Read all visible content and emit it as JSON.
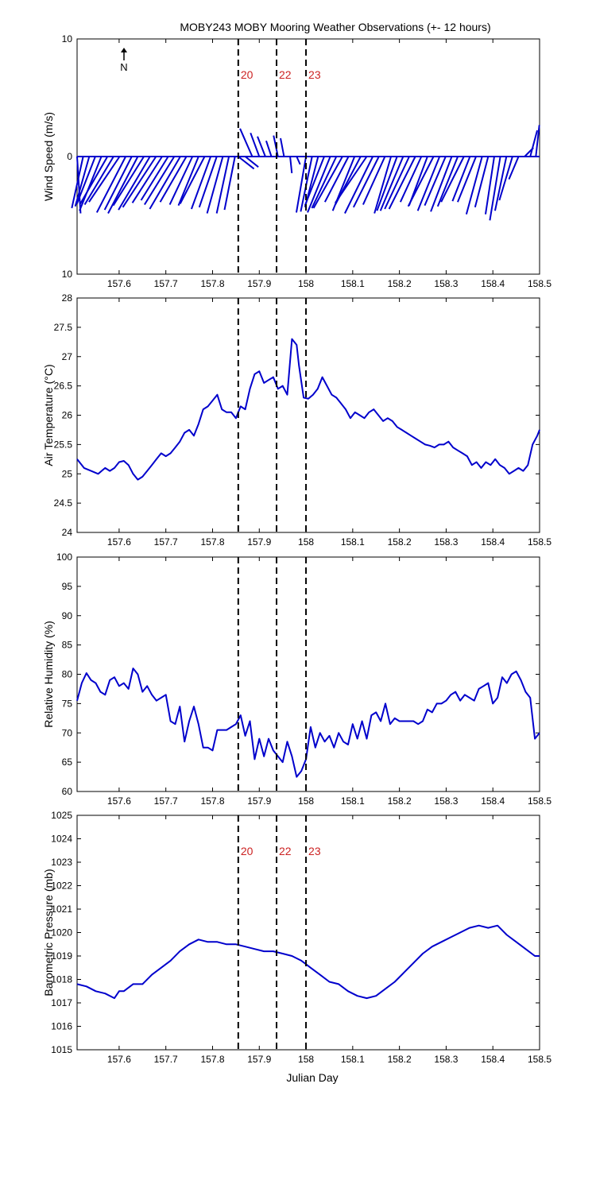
{
  "title": "MOBY243 MOBY Mooring Weather Observations (+- 12 hours)",
  "north_label": "N",
  "xlabel": "Julian Day",
  "colors": {
    "series": "#0000cc",
    "marker_label": "#cc2222",
    "axis": "#000000"
  },
  "x_range": [
    157.51,
    158.5
  ],
  "x_ticks": [
    157.6,
    157.7,
    157.8,
    157.9,
    158,
    158.1,
    158.2,
    158.3,
    158.4,
    158.5
  ],
  "x_tick_labels": [
    "157.6",
    "157.7",
    "157.8",
    "157.9",
    "158",
    "158.1",
    "158.2",
    "158.3",
    "158.4",
    "158.5"
  ],
  "markers": [
    {
      "x": 157.855,
      "label": "20"
    },
    {
      "x": 157.937,
      "label": "22"
    },
    {
      "x": 158.0,
      "label": "23"
    }
  ],
  "chart_data": [
    {
      "type": "line",
      "subtype": "wind-vectors",
      "ylabel": "Wind Speed (m/s)",
      "ylim": [
        -10,
        10
      ],
      "y_ticks": [
        10,
        0,
        -10
      ],
      "y_tick_labels": [
        "10",
        "0",
        "10"
      ],
      "show_marker_labels": true,
      "show_north": true,
      "series": [
        {
          "x": [
            157.51,
            157.523,
            157.536,
            157.549,
            157.562,
            157.575,
            157.588,
            157.601,
            157.614,
            157.627,
            157.64,
            157.653,
            157.666,
            157.679,
            157.692,
            157.705,
            157.718,
            157.731,
            157.744,
            157.757,
            157.77,
            157.783,
            157.796,
            157.809,
            157.822,
            157.835,
            157.848,
            157.855,
            157.87,
            157.885,
            157.9,
            157.913,
            157.926,
            157.94,
            157.953,
            157.966,
            157.98,
            158.0,
            158.013,
            158.026,
            158.039,
            158.052,
            158.065,
            158.078,
            158.091,
            158.104,
            158.117,
            158.13,
            158.143,
            158.156,
            158.169,
            158.182,
            158.195,
            158.208,
            158.221,
            158.234,
            158.247,
            158.26,
            158.273,
            158.286,
            158.299,
            158.312,
            158.325,
            158.338,
            158.351,
            158.364,
            158.377,
            158.39,
            158.403,
            158.416,
            158.429,
            158.442,
            158.455,
            158.468,
            158.48,
            158.492
          ],
          "u": [
            0.4,
            -1.3,
            -1.6,
            -2.1,
            -2.5,
            -3.1,
            -3.3,
            -3.5,
            -3.3,
            -3.1,
            -3.4,
            -3.5,
            -3.6,
            -3.8,
            -3.4,
            -3.1,
            -3.4,
            -3.5,
            -3.0,
            -2.6,
            -2.3,
            -2.8,
            -2.2,
            -2.0,
            -1.8,
            -1.4,
            -1.2,
            1.8,
            1.5,
            -1.4,
            -1.0,
            -0.9,
            -0.6,
            -0.5,
            -0.4,
            0.2,
            0.4,
            -1.1,
            -1.3,
            -1.5,
            -2.2,
            -2.6,
            -2.8,
            -3.3,
            -2.7,
            -2.5,
            -2.9,
            -3.6,
            -3.2,
            -2.9,
            -2.5,
            -1.9,
            -2.3,
            -2.6,
            -2.8,
            -3.0,
            -2.4,
            -2.1,
            -2.9,
            -2.5,
            -2.4,
            -2.4,
            -2.3,
            -2.6,
            -2.0,
            -2.1,
            -1.8,
            -1.5,
            -1.0,
            -1.2,
            -1.3,
            -1.5,
            -1.1,
            1.0,
            0.8,
            0.4
          ],
          "v": [
            -6.5,
            -5.9,
            -5.7,
            -5.4,
            -6.2,
            -5.4,
            -5.5,
            -5.2,
            -6.4,
            -6.1,
            -6.5,
            -5.6,
            -6.1,
            -5.8,
            -5.3,
            -5.0,
            -5.5,
            -6.0,
            -5.2,
            -5.5,
            -5.6,
            -5.4,
            -6.0,
            -5.8,
            -6.5,
            -6.5,
            -6.1,
            -1.4,
            -1.2,
            3.2,
            2.7,
            2.3,
            1.8,
            2.4,
            2.1,
            -1.9,
            -0.9,
            -6.4,
            -6.3,
            -5.8,
            -5.6,
            -6.4,
            -5.9,
            -5.9,
            -5.2,
            -6.2,
            -5.5,
            -5.3,
            -6.5,
            -5.8,
            -5.5,
            -6.5,
            -6.2,
            -6.2,
            -6.0,
            -6.0,
            -5.2,
            -5.6,
            -5.7,
            -6.2,
            -5.6,
            -6.3,
            -5.7,
            -5.2,
            -5.1,
            -5.2,
            -6.6,
            -5.8,
            -6.6,
            -7.3,
            -6.2,
            -5.0,
            -2.6,
            1.0,
            3.0,
            3.6
          ]
        }
      ]
    },
    {
      "type": "line",
      "ylabel": "Air Temperature (°C)",
      "ylim": [
        24,
        28
      ],
      "y_ticks": [
        24,
        24.5,
        25,
        25.5,
        26,
        26.5,
        27,
        27.5,
        28
      ],
      "y_tick_labels": [
        "24",
        "24.5",
        "25",
        "25.5",
        "26",
        "26.5",
        "27",
        "27.5",
        "28"
      ],
      "show_marker_labels": false,
      "series": [
        {
          "x": [
            157.51,
            157.525,
            157.54,
            157.555,
            157.57,
            157.58,
            157.59,
            157.6,
            157.61,
            157.62,
            157.63,
            157.64,
            157.65,
            157.66,
            157.67,
            157.68,
            157.69,
            157.7,
            157.71,
            157.72,
            157.73,
            157.74,
            157.75,
            157.76,
            157.77,
            157.78,
            157.79,
            157.8,
            157.81,
            157.82,
            157.83,
            157.84,
            157.85,
            157.86,
            157.87,
            157.88,
            157.89,
            157.9,
            157.91,
            157.92,
            157.93,
            157.94,
            157.95,
            157.96,
            157.97,
            157.98,
            157.985,
            157.995,
            158.005,
            158.015,
            158.025,
            158.035,
            158.045,
            158.055,
            158.065,
            158.075,
            158.085,
            158.095,
            158.105,
            158.115,
            158.125,
            158.135,
            158.145,
            158.155,
            158.165,
            158.175,
            158.185,
            158.195,
            158.205,
            158.215,
            158.225,
            158.235,
            158.245,
            158.255,
            158.265,
            158.275,
            158.285,
            158.295,
            158.305,
            158.315,
            158.325,
            158.335,
            158.345,
            158.355,
            158.365,
            158.375,
            158.385,
            158.395,
            158.405,
            158.415,
            158.425,
            158.435,
            158.445,
            158.455,
            158.465,
            158.475,
            158.485,
            158.495,
            158.5
          ],
          "y": [
            25.25,
            25.1,
            25.05,
            25.0,
            25.1,
            25.05,
            25.1,
            25.2,
            25.22,
            25.15,
            25.0,
            24.9,
            24.95,
            25.05,
            25.15,
            25.25,
            25.35,
            25.3,
            25.35,
            25.45,
            25.55,
            25.7,
            25.75,
            25.65,
            25.85,
            26.1,
            26.15,
            26.25,
            26.35,
            26.1,
            26.05,
            26.05,
            25.95,
            26.15,
            26.1,
            26.45,
            26.7,
            26.75,
            26.55,
            26.6,
            26.65,
            26.45,
            26.5,
            26.35,
            27.3,
            27.2,
            26.85,
            26.3,
            26.28,
            26.35,
            26.45,
            26.65,
            26.5,
            26.35,
            26.3,
            26.2,
            26.1,
            25.95,
            26.05,
            26.0,
            25.95,
            26.05,
            26.1,
            26.0,
            25.9,
            25.95,
            25.9,
            25.8,
            25.75,
            25.7,
            25.65,
            25.6,
            25.55,
            25.5,
            25.48,
            25.45,
            25.5,
            25.5,
            25.55,
            25.45,
            25.4,
            25.35,
            25.3,
            25.15,
            25.2,
            25.1,
            25.2,
            25.15,
            25.25,
            25.15,
            25.1,
            25.0,
            25.05,
            25.1,
            25.05,
            25.15,
            25.5,
            25.65,
            25.75
          ]
        }
      ]
    },
    {
      "type": "line",
      "ylabel": "Relative Humidity (%)",
      "ylim": [
        60,
        100
      ],
      "y_ticks": [
        60,
        65,
        70,
        75,
        80,
        85,
        90,
        95,
        100
      ],
      "y_tick_labels": [
        "60",
        "65",
        "70",
        "75",
        "80",
        "85",
        "90",
        "95",
        "100"
      ],
      "show_marker_labels": false,
      "series": [
        {
          "x": [
            157.51,
            157.52,
            157.53,
            157.54,
            157.55,
            157.56,
            157.57,
            157.58,
            157.59,
            157.6,
            157.61,
            157.62,
            157.63,
            157.64,
            157.65,
            157.66,
            157.67,
            157.68,
            157.69,
            157.7,
            157.71,
            157.72,
            157.73,
            157.74,
            157.75,
            157.76,
            157.77,
            157.78,
            157.79,
            157.8,
            157.81,
            157.82,
            157.83,
            157.84,
            157.85,
            157.86,
            157.87,
            157.88,
            157.89,
            157.9,
            157.91,
            157.92,
            157.93,
            157.94,
            157.95,
            157.96,
            157.97,
            157.98,
            157.99,
            158.0,
            158.01,
            158.02,
            158.03,
            158.04,
            158.05,
            158.06,
            158.07,
            158.08,
            158.09,
            158.1,
            158.11,
            158.12,
            158.13,
            158.14,
            158.15,
            158.16,
            158.17,
            158.18,
            158.19,
            158.2,
            158.21,
            158.22,
            158.23,
            158.24,
            158.25,
            158.26,
            158.27,
            158.28,
            158.29,
            158.3,
            158.31,
            158.32,
            158.33,
            158.34,
            158.35,
            158.36,
            158.37,
            158.38,
            158.39,
            158.4,
            158.41,
            158.42,
            158.43,
            158.44,
            158.45,
            158.46,
            158.47,
            158.48,
            158.49,
            158.5
          ],
          "y": [
            75.5,
            78.5,
            80.2,
            79.0,
            78.5,
            77.0,
            76.5,
            79.0,
            79.5,
            78.0,
            78.5,
            77.5,
            81.0,
            80.0,
            77.0,
            78.0,
            76.5,
            75.5,
            76.0,
            76.5,
            72.0,
            71.5,
            74.5,
            68.5,
            72.0,
            74.5,
            71.5,
            67.5,
            67.5,
            67.0,
            70.5,
            70.5,
            70.5,
            71.0,
            71.5,
            73.0,
            69.5,
            72.0,
            65.5,
            69.0,
            66.0,
            69.0,
            67.0,
            66.0,
            65.0,
            68.5,
            66.0,
            62.5,
            63.5,
            65.5,
            71.0,
            67.5,
            70.0,
            68.5,
            69.5,
            67.5,
            70.0,
            68.5,
            68.0,
            71.5,
            69.0,
            72.0,
            69.0,
            73.0,
            73.5,
            72.0,
            75.0,
            71.5,
            72.5,
            72.0,
            72.0,
            72.0,
            72.0,
            71.5,
            72.0,
            74.0,
            73.5,
            75.0,
            75.0,
            75.5,
            76.5,
            77.0,
            75.5,
            76.5,
            76.0,
            75.5,
            77.5,
            78.0,
            78.5,
            75.0,
            76.0,
            79.5,
            78.5,
            80.0,
            80.5,
            79.0,
            77.0,
            76.0,
            69.0,
            70.0
          ]
        }
      ]
    },
    {
      "type": "line",
      "ylabel": "Barometric Pressure (mb)",
      "ylim": [
        1015,
        1025
      ],
      "y_ticks": [
        1015,
        1016,
        1017,
        1018,
        1019,
        1020,
        1021,
        1022,
        1023,
        1024,
        1025
      ],
      "y_tick_labels": [
        "1015",
        "1016",
        "1017",
        "1018",
        "1019",
        "1020",
        "1021",
        "1022",
        "1023",
        "1024",
        "1025"
      ],
      "show_marker_labels": true,
      "series": [
        {
          "x": [
            157.51,
            157.53,
            157.55,
            157.57,
            157.59,
            157.6,
            157.61,
            157.63,
            157.65,
            157.67,
            157.69,
            157.71,
            157.73,
            157.75,
            157.77,
            157.79,
            157.81,
            157.83,
            157.85,
            157.87,
            157.89,
            157.91,
            157.93,
            157.95,
            157.97,
            157.99,
            158.01,
            158.03,
            158.05,
            158.07,
            158.09,
            158.11,
            158.13,
            158.15,
            158.17,
            158.19,
            158.21,
            158.23,
            158.25,
            158.27,
            158.29,
            158.31,
            158.33,
            158.35,
            158.37,
            158.39,
            158.41,
            158.43,
            158.45,
            158.47,
            158.49,
            158.5
          ],
          "y": [
            1017.8,
            1017.7,
            1017.5,
            1017.4,
            1017.2,
            1017.5,
            1017.5,
            1017.8,
            1017.8,
            1018.2,
            1018.5,
            1018.8,
            1019.2,
            1019.5,
            1019.7,
            1019.6,
            1019.6,
            1019.5,
            1019.5,
            1019.4,
            1019.3,
            1019.2,
            1019.2,
            1019.1,
            1019.0,
            1018.8,
            1018.5,
            1018.2,
            1017.9,
            1017.8,
            1017.5,
            1017.3,
            1017.2,
            1017.3,
            1017.6,
            1017.9,
            1018.3,
            1018.7,
            1019.1,
            1019.4,
            1019.6,
            1019.8,
            1020.0,
            1020.2,
            1020.3,
            1020.2,
            1020.3,
            1019.9,
            1019.6,
            1019.3,
            1019.0,
            1019.0
          ]
        }
      ]
    }
  ]
}
